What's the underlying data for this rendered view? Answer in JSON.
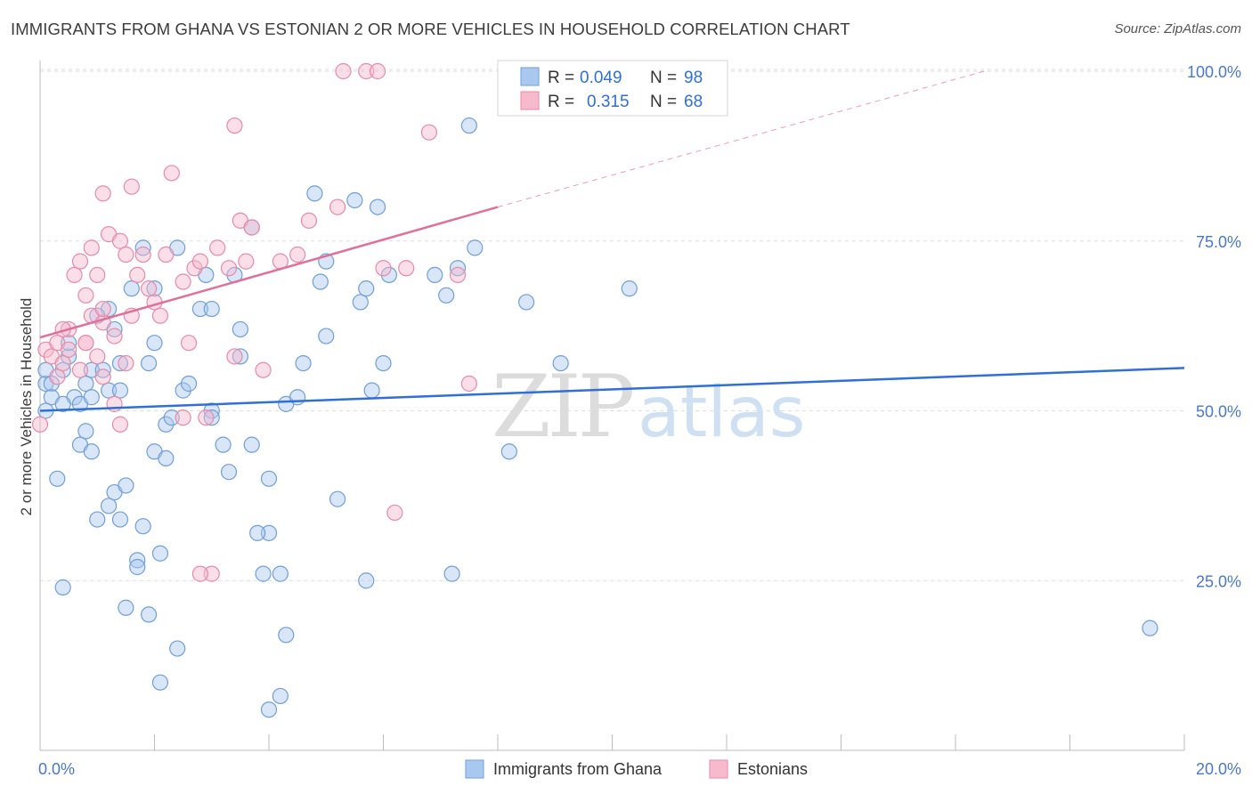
{
  "title": "IMMIGRANTS FROM GHANA VS ESTONIAN 2 OR MORE VEHICLES IN HOUSEHOLD CORRELATION CHART",
  "source": "Source: ZipAtlas.com",
  "watermark": {
    "zip": "ZIP",
    "atlas": "atlas"
  },
  "colors": {
    "blue_fill": "#a9c8ef",
    "blue_stroke": "#6f9fd8",
    "blue_line": "#2f6fd6",
    "pink_fill": "#f7b9cc",
    "pink_stroke": "#e78aa9",
    "pink_line": "#e0709a",
    "grid": "#dddddd",
    "axis_text": "#4a78c8"
  },
  "legend": {
    "rows": [
      {
        "r_label": "R = ",
        "r_value": "0.049",
        "n_label": "N = ",
        "n_value": "98",
        "color": "#a9c8ef"
      },
      {
        "r_label": "R = ",
        "r_value": "0.315",
        "n_label": "N = ",
        "n_value": "68",
        "color": "#f7b9cc"
      }
    ]
  },
  "chart_data": {
    "type": "scatter",
    "title": "IMMIGRANTS FROM GHANA VS ESTONIAN 2 OR MORE VEHICLES IN HOUSEHOLD CORRELATION CHART",
    "xlabel": "",
    "ylabel": "2 or more Vehicles in Household",
    "xlim": [
      0,
      20
    ],
    "ylim": [
      0,
      100
    ],
    "x_ticks": [
      "0.0%",
      "20.0%"
    ],
    "y_ticks": [
      {
        "value": 25,
        "label": "25.0%"
      },
      {
        "value": 50,
        "label": "50.0%"
      },
      {
        "value": 75,
        "label": "75.0%"
      },
      {
        "value": 100,
        "label": "100.0%"
      }
    ],
    "grid": true,
    "legend_position": "bottom-center",
    "series": [
      {
        "name": "Immigrants from Ghana",
        "color": "#a9c8ef",
        "R": 0.049,
        "N": 98,
        "trend": {
          "x0": 0,
          "y0": 50.0,
          "x1": 20,
          "y1": 56.3
        },
        "points": [
          [
            0.1,
            54
          ],
          [
            0.1,
            56
          ],
          [
            0.2,
            54
          ],
          [
            0.2,
            52
          ],
          [
            0.1,
            50
          ],
          [
            0.4,
            56
          ],
          [
            0.5,
            58
          ],
          [
            0.5,
            60
          ],
          [
            0.6,
            52
          ],
          [
            0.7,
            51
          ],
          [
            0.8,
            54
          ],
          [
            0.9,
            52
          ],
          [
            0.4,
            51
          ],
          [
            0.9,
            56
          ],
          [
            1.1,
            56
          ],
          [
            1.2,
            53
          ],
          [
            1.2,
            65
          ],
          [
            1.3,
            62
          ],
          [
            1.4,
            53
          ],
          [
            1.4,
            57
          ],
          [
            1.6,
            68
          ],
          [
            1.8,
            74
          ],
          [
            1.9,
            57
          ],
          [
            2.0,
            60
          ],
          [
            2.0,
            68
          ],
          [
            2.2,
            48
          ],
          [
            2.3,
            49
          ],
          [
            2.4,
            74
          ],
          [
            2.5,
            53
          ],
          [
            2.6,
            54
          ],
          [
            2.8,
            65
          ],
          [
            2.9,
            70
          ],
          [
            3.0,
            65
          ],
          [
            3.0,
            50
          ],
          [
            3.0,
            49
          ],
          [
            3.2,
            45
          ],
          [
            3.3,
            41
          ],
          [
            3.4,
            70
          ],
          [
            3.5,
            58
          ],
          [
            3.5,
            62
          ],
          [
            3.7,
            77
          ],
          [
            3.7,
            45
          ],
          [
            4.0,
            32
          ],
          [
            4.0,
            40
          ],
          [
            4.2,
            26
          ],
          [
            4.3,
            51
          ],
          [
            4.5,
            52
          ],
          [
            4.6,
            57
          ],
          [
            4.8,
            82
          ],
          [
            4.9,
            69
          ],
          [
            5.0,
            72
          ],
          [
            5.0,
            61
          ],
          [
            5.2,
            37
          ],
          [
            5.5,
            81
          ],
          [
            5.6,
            66
          ],
          [
            5.7,
            68
          ],
          [
            5.8,
            53
          ],
          [
            5.9,
            80
          ],
          [
            6.0,
            57
          ],
          [
            6.1,
            70
          ],
          [
            1.0,
            64
          ],
          [
            0.8,
            47
          ],
          [
            0.7,
            45
          ],
          [
            0.9,
            44
          ],
          [
            1.2,
            36
          ],
          [
            1.0,
            34
          ],
          [
            1.4,
            34
          ],
          [
            1.3,
            38
          ],
          [
            1.5,
            39
          ],
          [
            1.8,
            33
          ],
          [
            1.7,
            28
          ],
          [
            1.7,
            27
          ],
          [
            2.1,
            29
          ],
          [
            2.0,
            44
          ],
          [
            2.2,
            43
          ],
          [
            1.5,
            21
          ],
          [
            1.9,
            20
          ],
          [
            2.4,
            15
          ],
          [
            2.1,
            10
          ],
          [
            3.8,
            32
          ],
          [
            3.9,
            26
          ],
          [
            4.3,
            17
          ],
          [
            4.2,
            8
          ],
          [
            4.0,
            6
          ],
          [
            7.5,
            92
          ],
          [
            7.6,
            74
          ],
          [
            7.3,
            71
          ],
          [
            7.1,
            67
          ],
          [
            6.9,
            70
          ],
          [
            8.2,
            44
          ],
          [
            8.5,
            66
          ],
          [
            9.1,
            57
          ],
          [
            10.3,
            68
          ],
          [
            5.7,
            25
          ],
          [
            7.2,
            26
          ],
          [
            0.4,
            24
          ],
          [
            0.3,
            40
          ],
          [
            19.4,
            18
          ]
        ]
      },
      {
        "name": "Estonians",
        "color": "#f7b9cc",
        "R": 0.315,
        "N": 68,
        "trend": {
          "x0": 0,
          "y0": 60.8,
          "x1": 8.0,
          "y1": 80.0
        },
        "trend_dashed": {
          "x0": 8.0,
          "y0": 80.0,
          "x1": 16.5,
          "y1": 100.0
        },
        "points": [
          [
            0.0,
            48
          ],
          [
            0.1,
            59
          ],
          [
            0.2,
            58
          ],
          [
            0.3,
            60
          ],
          [
            0.3,
            55
          ],
          [
            0.4,
            57
          ],
          [
            0.5,
            59
          ],
          [
            0.5,
            62
          ],
          [
            0.6,
            70
          ],
          [
            0.7,
            72
          ],
          [
            0.8,
            60
          ],
          [
            0.8,
            67
          ],
          [
            0.9,
            64
          ],
          [
            0.9,
            74
          ],
          [
            1.0,
            70
          ],
          [
            1.0,
            58
          ],
          [
            1.1,
            63
          ],
          [
            1.1,
            65
          ],
          [
            1.1,
            55
          ],
          [
            1.2,
            76
          ],
          [
            1.3,
            51
          ],
          [
            1.3,
            61
          ],
          [
            1.4,
            48
          ],
          [
            1.4,
            75
          ],
          [
            1.5,
            57
          ],
          [
            1.5,
            73
          ],
          [
            1.6,
            64
          ],
          [
            1.6,
            83
          ],
          [
            1.7,
            70
          ],
          [
            1.8,
            73
          ],
          [
            1.9,
            68
          ],
          [
            2.0,
            66
          ],
          [
            2.1,
            64
          ],
          [
            2.2,
            73
          ],
          [
            2.3,
            85
          ],
          [
            2.5,
            69
          ],
          [
            2.6,
            60
          ],
          [
            2.7,
            71
          ],
          [
            2.8,
            72
          ],
          [
            2.9,
            49
          ],
          [
            3.0,
            26
          ],
          [
            3.1,
            74
          ],
          [
            3.3,
            71
          ],
          [
            3.4,
            58
          ],
          [
            3.5,
            78
          ],
          [
            3.6,
            72
          ],
          [
            3.7,
            77
          ],
          [
            3.9,
            56
          ],
          [
            4.2,
            72
          ],
          [
            4.5,
            73
          ],
          [
            4.7,
            78
          ],
          [
            5.2,
            80
          ],
          [
            5.3,
            100
          ],
          [
            5.7,
            100
          ],
          [
            5.9,
            100
          ],
          [
            6.0,
            71
          ],
          [
            6.2,
            35
          ],
          [
            6.4,
            71
          ],
          [
            6.8,
            91
          ],
          [
            7.3,
            70
          ],
          [
            7.5,
            54
          ],
          [
            3.4,
            92
          ],
          [
            1.1,
            82
          ],
          [
            0.8,
            60
          ],
          [
            0.4,
            62
          ],
          [
            0.7,
            56
          ],
          [
            2.8,
            26
          ],
          [
            2.5,
            49
          ]
        ]
      }
    ]
  }
}
